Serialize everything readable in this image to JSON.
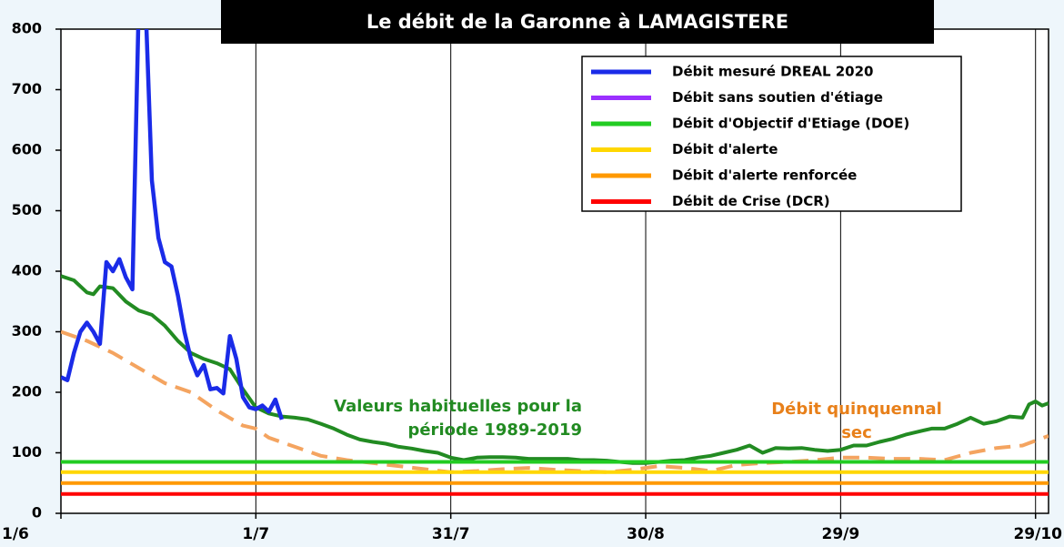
{
  "chart_data": {
    "type": "line",
    "title": "Le débit de la Garonne à LAMAGISTERE",
    "xlim": [
      0,
      152
    ],
    "xticks": [
      {
        "value": 0,
        "label": "1/6"
      },
      {
        "value": 30,
        "label": "1/7"
      },
      {
        "value": 60,
        "label": "31/7"
      },
      {
        "value": 90,
        "label": "30/8"
      },
      {
        "value": 120,
        "label": "29/9"
      },
      {
        "value": 150,
        "label": "29/10"
      }
    ],
    "ylim": [
      0,
      800
    ],
    "yticks": [
      0,
      100,
      200,
      300,
      400,
      500,
      600,
      700,
      800
    ],
    "grid": "x",
    "legend": "upper right",
    "series": [
      {
        "name": "Débit mesuré DREAL 2020",
        "color": "#1a2be8",
        "x": [
          0,
          1,
          2,
          3,
          4,
          5,
          6,
          7,
          8,
          9,
          10,
          11,
          12,
          13,
          14,
          15,
          16,
          17,
          18,
          19,
          20,
          21,
          22,
          23,
          24,
          25,
          26,
          27,
          28,
          29,
          30,
          31,
          32,
          33,
          34
        ],
        "values": [
          225,
          220,
          265,
          300,
          315,
          300,
          280,
          415,
          400,
          420,
          390,
          370,
          850,
          850,
          550,
          455,
          415,
          408,
          360,
          300,
          255,
          228,
          245,
          205,
          207,
          198,
          293,
          255,
          192,
          175,
          172,
          178,
          168,
          188,
          155
        ]
      },
      {
        "name": "Débit sans soutien d'étiage",
        "color": "#9b30ff",
        "x": [],
        "values": []
      },
      {
        "name": "Débit d'Objectif d'Etiage (DOE)",
        "color": "#22cc22",
        "x": [
          0,
          152
        ],
        "values": [
          85,
          85
        ]
      },
      {
        "name": "Débit d'alerte",
        "color": "#ffd700",
        "x": [
          0,
          152
        ],
        "values": [
          68,
          68
        ]
      },
      {
        "name": "Débit d'alerte renforcée",
        "color": "#ff9900",
        "x": [
          0,
          152
        ],
        "values": [
          50,
          50
        ]
      },
      {
        "name": "Débit de Crise (DCR)",
        "color": "#ff0000",
        "x": [
          0,
          152
        ],
        "values": [
          32,
          32
        ]
      }
    ],
    "reference_curves": [
      {
        "label": [
          "Valeurs habituelles pour la",
          "période 1989-2019"
        ],
        "color": "#228b22",
        "dashed": false,
        "x": [
          0,
          2,
          4,
          5,
          6,
          8,
          10,
          12,
          14,
          16,
          18,
          20,
          22,
          24,
          26,
          28,
          30,
          32,
          34,
          36,
          38,
          40,
          42,
          44,
          46,
          48,
          50,
          52,
          54,
          56,
          58,
          60,
          62,
          64,
          66,
          68,
          70,
          72,
          74,
          76,
          78,
          80,
          82,
          84,
          86,
          88,
          90,
          92,
          94,
          96,
          98,
          100,
          102,
          104,
          106,
          108,
          110,
          112,
          114,
          116,
          118,
          120,
          122,
          124,
          126,
          128,
          130,
          132,
          134,
          136,
          138,
          140,
          142,
          144,
          146,
          148,
          149,
          150,
          151,
          152
        ],
        "values": [
          392,
          385,
          365,
          362,
          375,
          372,
          350,
          335,
          328,
          310,
          285,
          265,
          255,
          248,
          238,
          205,
          175,
          165,
          160,
          158,
          155,
          148,
          140,
          130,
          122,
          118,
          115,
          110,
          107,
          103,
          100,
          92,
          88,
          92,
          93,
          93,
          92,
          90,
          90,
          90,
          90,
          88,
          88,
          87,
          85,
          83,
          83,
          85,
          87,
          88,
          92,
          95,
          100,
          105,
          112,
          100,
          108,
          107,
          108,
          105,
          103,
          105,
          112,
          112,
          118,
          123,
          130,
          135,
          140,
          140,
          148,
          158,
          148,
          152,
          160,
          158,
          180,
          185,
          178,
          182
        ]
      },
      {
        "label": [
          "Débit quinquennal",
          "sec"
        ],
        "color": "#f4a460",
        "dashed": true,
        "x": [
          0,
          4,
          8,
          12,
          16,
          20,
          24,
          28,
          30,
          32,
          36,
          40,
          44,
          48,
          52,
          56,
          60,
          64,
          68,
          72,
          76,
          80,
          84,
          88,
          92,
          96,
          100,
          104,
          108,
          112,
          116,
          120,
          124,
          128,
          132,
          136,
          140,
          144,
          148,
          152
        ],
        "values": [
          300,
          285,
          265,
          240,
          215,
          200,
          170,
          145,
          140,
          125,
          110,
          95,
          88,
          83,
          78,
          73,
          68,
          70,
          73,
          75,
          72,
          70,
          68,
          72,
          78,
          75,
          70,
          80,
          83,
          85,
          88,
          92,
          92,
          90,
          90,
          88,
          100,
          108,
          112,
          128
        ]
      }
    ]
  }
}
